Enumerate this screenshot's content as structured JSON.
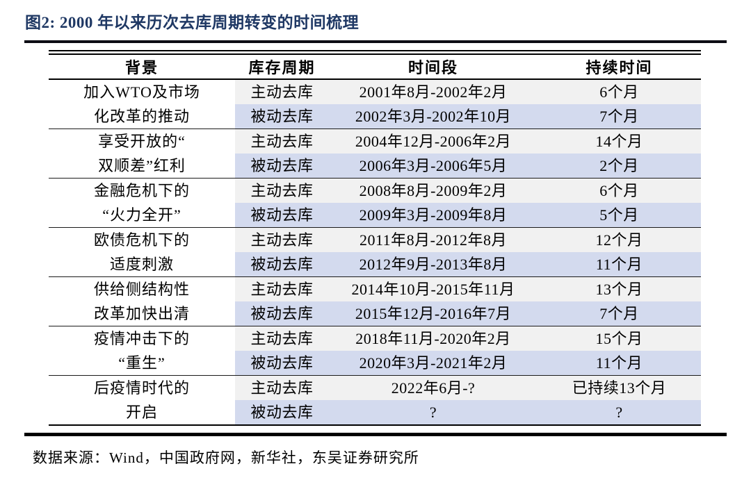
{
  "title": "图2:  2000 年以来历次去库周期转变的时间梳理",
  "colors": {
    "title_navy": "#1f3864",
    "active_row_gray": "#f1f1f1",
    "passive_row_blue": "#d3daee",
    "rule_black": "#000000"
  },
  "table": {
    "headers": [
      "背景",
      "库存周期",
      "时间段",
      "持续时间"
    ],
    "groups": [
      {
        "background_lines": [
          "加入WTO及市场",
          "化改革的推动"
        ],
        "rows": [
          {
            "cycle": "主动去库",
            "period": "2001年8月-2002年2月",
            "duration": "6个月"
          },
          {
            "cycle": "被动去库",
            "period": "2002年3月-2002年10月",
            "duration": "7个月"
          }
        ]
      },
      {
        "background_lines": [
          "享受开放的“",
          "双顺差”红利"
        ],
        "rows": [
          {
            "cycle": "主动去库",
            "period": "2004年12月-2006年2月",
            "duration": "14个月"
          },
          {
            "cycle": "被动去库",
            "period": "2006年3月-2006年5月",
            "duration": "2个月"
          }
        ]
      },
      {
        "background_lines": [
          "金融危机下的",
          "“火力全开”"
        ],
        "rows": [
          {
            "cycle": "主动去库",
            "period": "2008年8月-2009年2月",
            "duration": "6个月"
          },
          {
            "cycle": "被动去库",
            "period": "2009年3月-2009年8月",
            "duration": "5个月"
          }
        ]
      },
      {
        "background_lines": [
          "欧债危机下的",
          "适度刺激"
        ],
        "rows": [
          {
            "cycle": "主动去库",
            "period": "2011年8月-2012年8月",
            "duration": "12个月"
          },
          {
            "cycle": "被动去库",
            "period": "2012年9月-2013年8月",
            "duration": "11个月"
          }
        ]
      },
      {
        "background_lines": [
          "供给侧结构性",
          "改革加快出清"
        ],
        "rows": [
          {
            "cycle": "主动去库",
            "period": "2014年10月-2015年11月",
            "duration": "13个月"
          },
          {
            "cycle": "被动去库",
            "period": "2015年12月-2016年7月",
            "duration": "7个月"
          }
        ]
      },
      {
        "background_lines": [
          "疫情冲击下的",
          "“重生”"
        ],
        "rows": [
          {
            "cycle": "主动去库",
            "period": "2018年11月-2020年2月",
            "duration": "15个月"
          },
          {
            "cycle": "被动去库",
            "period": "2020年3月-2021年2月",
            "duration": "11个月"
          }
        ]
      },
      {
        "background_lines": [
          "后疫情时代的",
          "开启"
        ],
        "rows": [
          {
            "cycle": "主动去库",
            "period": "2022年6月-?",
            "duration": "已持续13个月"
          },
          {
            "cycle": "被动去库",
            "period": "?",
            "duration": "?"
          }
        ]
      }
    ]
  },
  "source": "数据来源：Wind，中国政府网，新华社，东吴证券研究所"
}
